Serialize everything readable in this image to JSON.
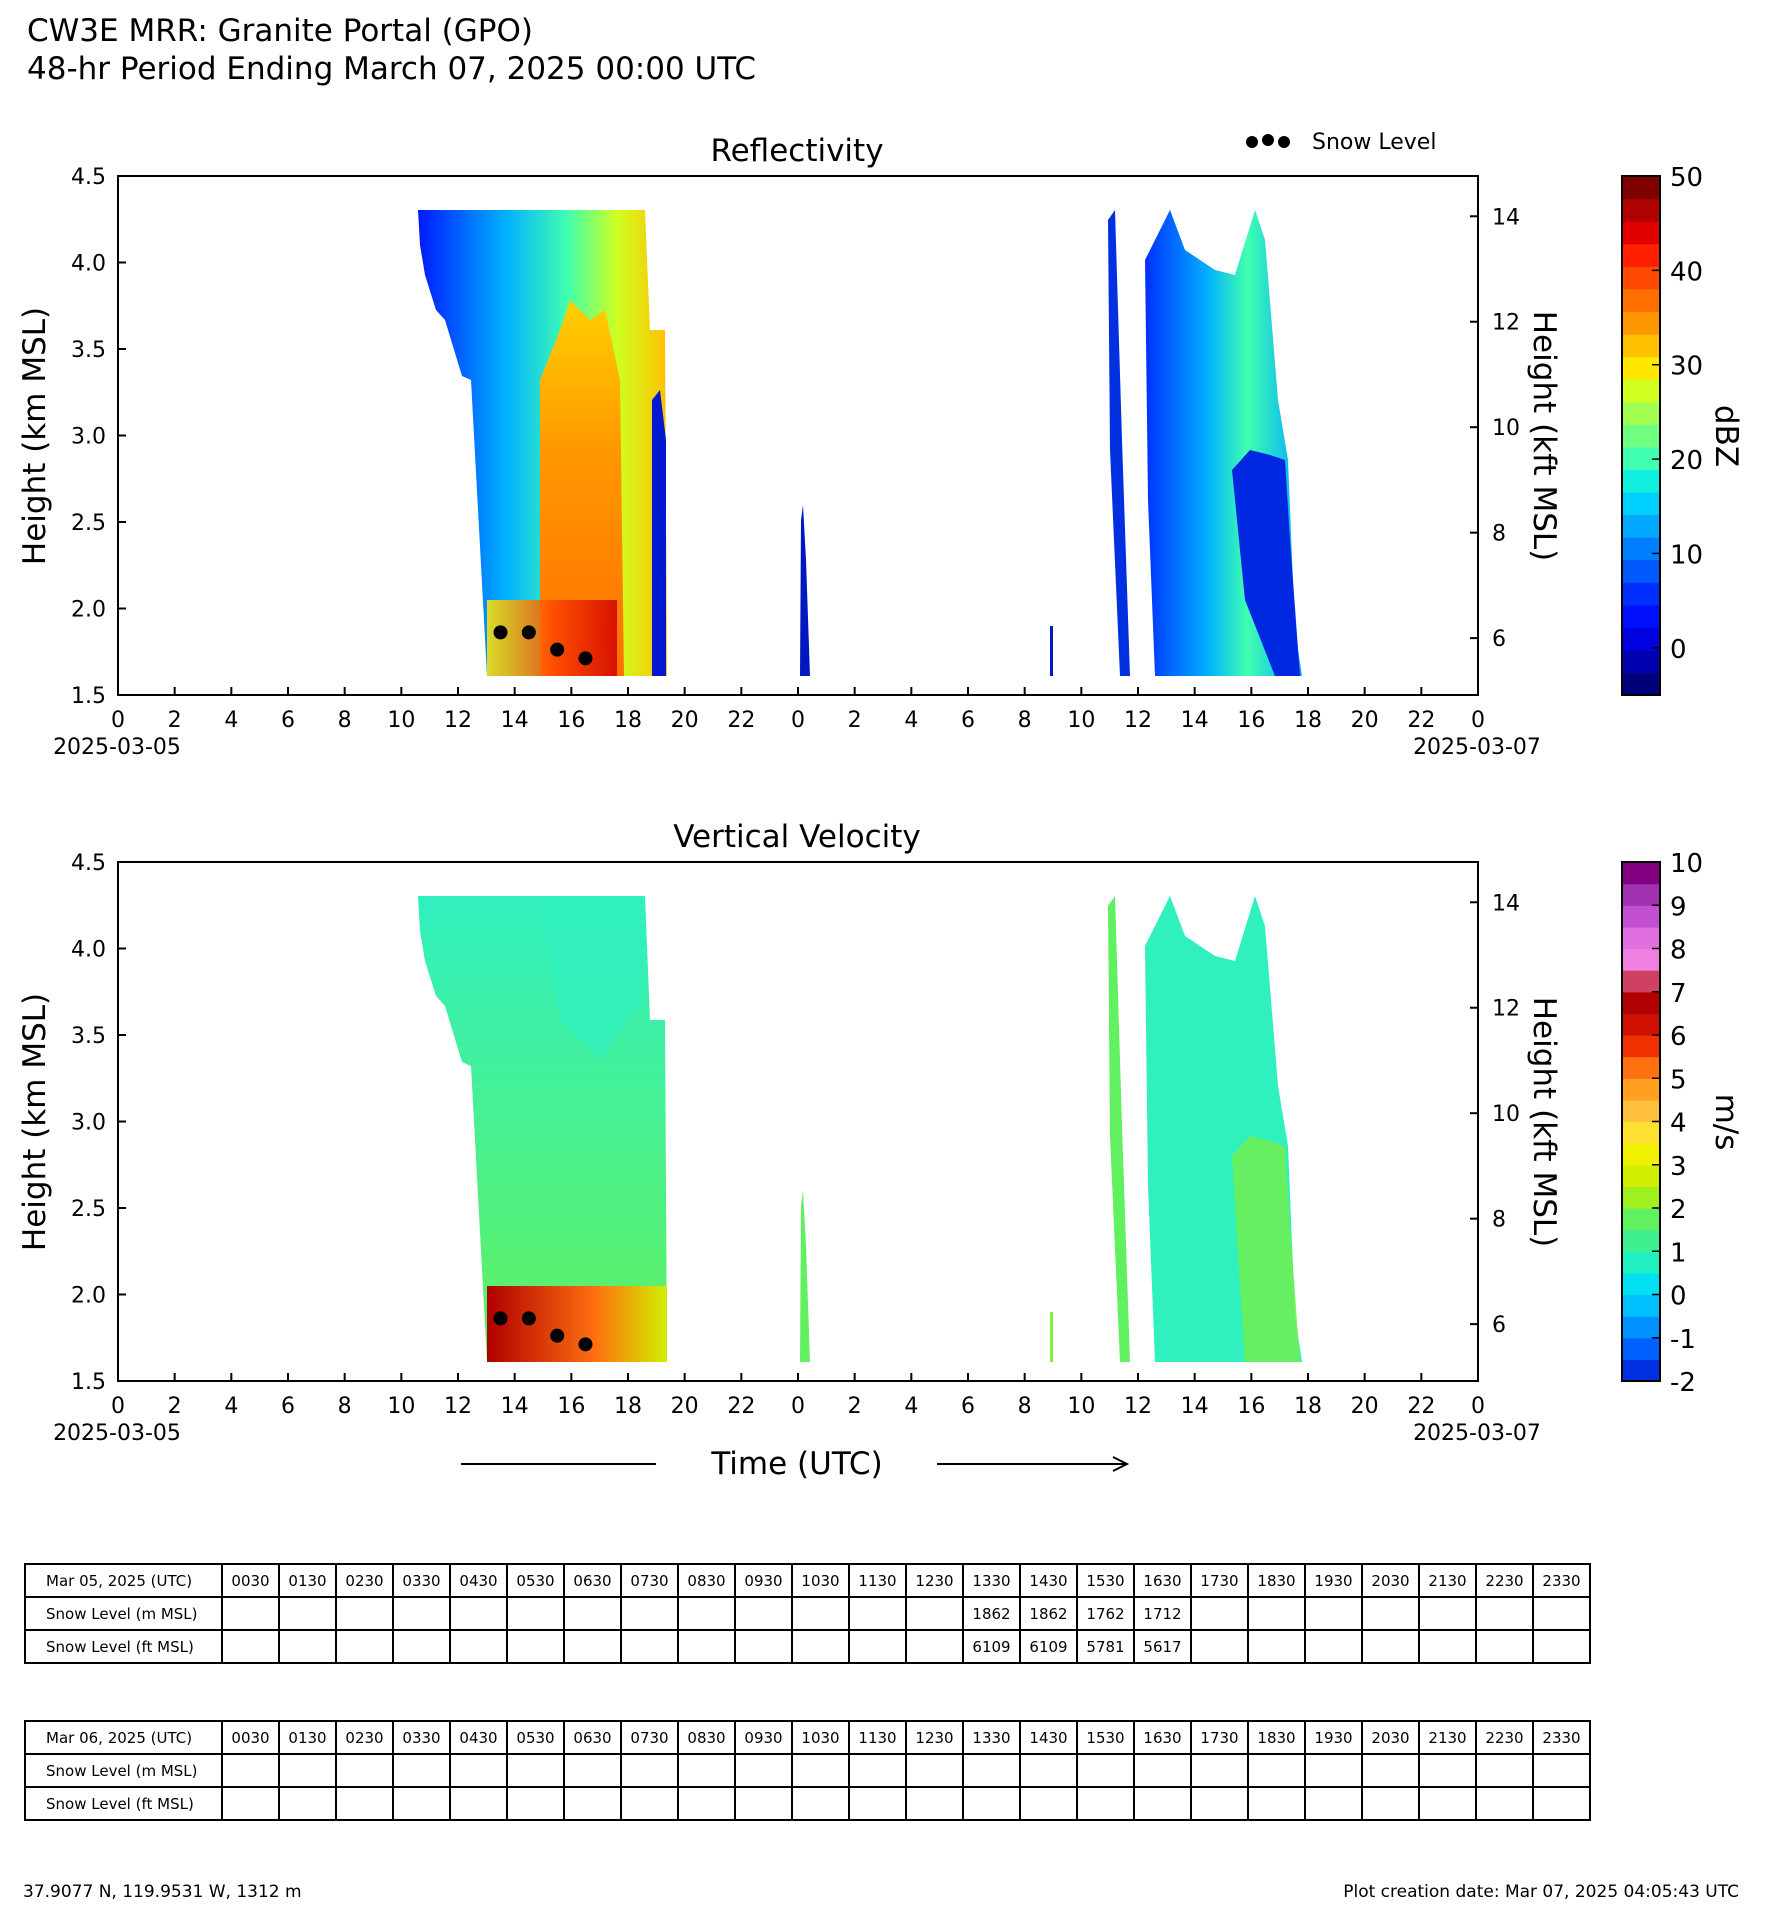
{
  "header": {
    "title": "CW3E MRR: Granite Portal (GPO)",
    "subtitle": "48-hr Period Ending March 07, 2025 00:00 UTC"
  },
  "legend": {
    "snow_level_label": "Snow Level"
  },
  "xaxis": {
    "label": "Time (UTC)",
    "ticks": [
      "0",
      "2",
      "4",
      "6",
      "8",
      "10",
      "12",
      "14",
      "16",
      "18",
      "20",
      "22",
      "0",
      "2",
      "4",
      "6",
      "8",
      "10",
      "12",
      "14",
      "16",
      "18",
      "20",
      "22",
      "0"
    ],
    "start_date": "2025-03-05",
    "end_date": "2025-03-07"
  },
  "chart_data": [
    {
      "type": "heatmap",
      "title": "Reflectivity",
      "ylabel": "Height (km MSL)",
      "ylabel_right": "Height (kft MSL)",
      "ylim": [
        1.5,
        4.5
      ],
      "yticks": [
        "1.5",
        "2.0",
        "2.5",
        "3.0",
        "3.5",
        "4.0",
        "4.5"
      ],
      "yticks_right": [
        "6",
        "8",
        "10",
        "12",
        "14"
      ],
      "colorbar": {
        "label": "dBZ",
        "ticks": [
          "0",
          "10",
          "20",
          "30",
          "40",
          "50"
        ],
        "range": [
          -5,
          50
        ]
      },
      "echo_regions": [
        {
          "name": "Mar 05 precipitation",
          "time_start_hr": 10.6,
          "time_end_hr": 19.2,
          "top_km": 4.3,
          "bottom_km": 1.6
        },
        {
          "name": "Mar 06 ~00 UTC",
          "time_start_hr": 24.0,
          "time_end_hr": 24.4,
          "top_km": 2.6,
          "bottom_km": 1.6
        },
        {
          "name": "Mar 06 ~09 UTC",
          "time_start_hr": 32.8,
          "time_end_hr": 33.0,
          "top_km": 1.9,
          "bottom_km": 1.6
        },
        {
          "name": "Mar 06 precipitation",
          "time_start_hr": 35.0,
          "time_end_hr": 41.8,
          "top_km": 4.3,
          "bottom_km": 1.6
        }
      ],
      "snow_level_points": [
        {
          "time_hr": 13.5,
          "height_km": 1.862
        },
        {
          "time_hr": 14.5,
          "height_km": 1.862
        },
        {
          "time_hr": 15.5,
          "height_km": 1.762
        },
        {
          "time_hr": 16.5,
          "height_km": 1.712
        }
      ]
    },
    {
      "type": "heatmap",
      "title": "Vertical Velocity",
      "ylabel": "Height (km MSL)",
      "ylabel_right": "Height (kft MSL)",
      "ylim": [
        1.5,
        4.5
      ],
      "yticks": [
        "1.5",
        "2.0",
        "2.5",
        "3.0",
        "3.5",
        "4.0",
        "4.5"
      ],
      "yticks_right": [
        "6",
        "8",
        "10",
        "12",
        "14"
      ],
      "colorbar": {
        "label": "m/s",
        "ticks": [
          "-2",
          "-1",
          "0",
          "1",
          "2",
          "3",
          "4",
          "5",
          "6",
          "7",
          "8",
          "9",
          "10"
        ],
        "range": [
          -2,
          10
        ]
      },
      "snow_level_points": [
        {
          "time_hr": 13.5,
          "height_km": 1.862
        },
        {
          "time_hr": 14.5,
          "height_km": 1.862
        },
        {
          "time_hr": 15.5,
          "height_km": 1.762
        },
        {
          "time_hr": 16.5,
          "height_km": 1.712
        }
      ]
    }
  ],
  "tables": [
    {
      "date_label": "Mar 05, 2025 (UTC)",
      "times": [
        "0030",
        "0130",
        "0230",
        "0330",
        "0430",
        "0530",
        "0630",
        "0730",
        "0830",
        "0930",
        "1030",
        "1130",
        "1230",
        "1330",
        "1430",
        "1530",
        "1630",
        "1730",
        "1830",
        "1930",
        "2030",
        "2130",
        "2230",
        "2330"
      ],
      "rows": [
        {
          "label": "Snow Level (m MSL)",
          "values": [
            "",
            "",
            "",
            "",
            "",
            "",
            "",
            "",
            "",
            "",
            "",
            "",
            "",
            "1862",
            "1862",
            "1762",
            "1712",
            "",
            "",
            "",
            "",
            "",
            "",
            ""
          ]
        },
        {
          "label": "Snow Level (ft MSL)",
          "values": [
            "",
            "",
            "",
            "",
            "",
            "",
            "",
            "",
            "",
            "",
            "",
            "",
            "",
            "6109",
            "6109",
            "5781",
            "5617",
            "",
            "",
            "",
            "",
            "",
            "",
            ""
          ]
        }
      ]
    },
    {
      "date_label": "Mar 06, 2025 (UTC)",
      "times": [
        "0030",
        "0130",
        "0230",
        "0330",
        "0430",
        "0530",
        "0630",
        "0730",
        "0830",
        "0930",
        "1030",
        "1130",
        "1230",
        "1330",
        "1430",
        "1530",
        "1630",
        "1730",
        "1830",
        "1930",
        "2030",
        "2130",
        "2230",
        "2330"
      ],
      "rows": [
        {
          "label": "Snow Level (m MSL)",
          "values": [
            "",
            "",
            "",
            "",
            "",
            "",
            "",
            "",
            "",
            "",
            "",
            "",
            "",
            "",
            "",
            "",
            "",
            "",
            "",
            "",
            "",
            "",
            "",
            ""
          ]
        },
        {
          "label": "Snow Level (ft MSL)",
          "values": [
            "",
            "",
            "",
            "",
            "",
            "",
            "",
            "",
            "",
            "",
            "",
            "",
            "",
            "",
            "",
            "",
            "",
            "",
            "",
            "",
            "",
            "",
            "",
            ""
          ]
        }
      ]
    }
  ],
  "footer": {
    "location": "37.9077 N, 119.9531 W, 1312 m",
    "creation": "Plot creation date: Mar 07, 2025 04:05:43 UTC"
  },
  "colors": {
    "dbz_scale": [
      "#00007a",
      "#0000b0",
      "#0000e0",
      "#0010ff",
      "#0030ff",
      "#0058ff",
      "#0080ff",
      "#00a8ff",
      "#00d0ff",
      "#10f0e0",
      "#40ffb0",
      "#70ff80",
      "#a0ff50",
      "#d0ff20",
      "#ffe800",
      "#ffc000",
      "#ff9800",
      "#ff7000",
      "#ff4800",
      "#ff2000",
      "#e00000",
      "#b00000",
      "#800000"
    ],
    "vel_scale": [
      "#0030e0",
      "#0060ff",
      "#0090ff",
      "#00c0ff",
      "#00e0f0",
      "#20f0c0",
      "#40f090",
      "#60f060",
      "#a0f020",
      "#d0f000",
      "#f0f000",
      "#ffe030",
      "#ffc040",
      "#ffa020",
      "#ff7010",
      "#f03000",
      "#d01000",
      "#b00000",
      "#d04060",
      "#f080e0",
      "#e070e0",
      "#c050d0",
      "#a030b0",
      "#800080"
    ]
  }
}
